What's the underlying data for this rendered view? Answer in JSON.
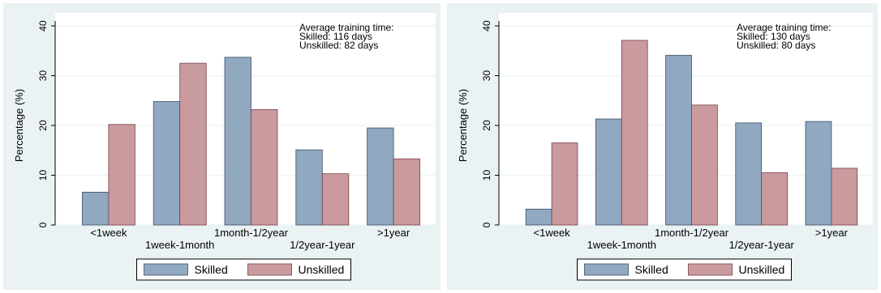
{
  "colors": {
    "outer_background": "#eaf2f3",
    "plot_background": "#ffffff",
    "skilled": "#90a8c0",
    "unskilled": "#c99a9e",
    "bar_edge": "#3d4f66",
    "unskilled_edge": "#7a3f45"
  },
  "chart_data": [
    {
      "type": "bar",
      "categories": [
        "<1week",
        "1week-1month",
        "1month-1/2year",
        "1/2year-1year",
        ">1year"
      ],
      "series": [
        {
          "name": "Skilled",
          "values": [
            6.6,
            24.8,
            33.7,
            15.1,
            19.5
          ]
        },
        {
          "name": "Unskilled",
          "values": [
            20.2,
            32.5,
            23.2,
            10.3,
            13.3
          ]
        }
      ],
      "ylabel": "Percentage (%)",
      "xlabel": "",
      "ylim": [
        0,
        40
      ],
      "yticks": [
        0,
        10,
        20,
        30,
        40
      ],
      "grid": true,
      "legend_placement": "bottom",
      "annotation": [
        "Average training time:",
        "Skilled: 116 days",
        "Unskilled: 82 days"
      ]
    },
    {
      "type": "bar",
      "categories": [
        "<1week",
        "1week-1month",
        "1month-1/2year",
        "1/2year-1year",
        ">1year"
      ],
      "series": [
        {
          "name": "Skilled",
          "values": [
            3.2,
            21.3,
            34.1,
            20.5,
            20.8
          ]
        },
        {
          "name": "Unskilled",
          "values": [
            16.5,
            37.1,
            24.1,
            10.5,
            11.4
          ]
        }
      ],
      "ylabel": "Percentage (%)",
      "xlabel": "",
      "ylim": [
        0,
        40
      ],
      "yticks": [
        0,
        10,
        20,
        30,
        40
      ],
      "grid": true,
      "legend_placement": "bottom",
      "annotation": [
        "Average training time:",
        "Skilled: 130 days",
        "Unskilled: 80 days"
      ]
    }
  ]
}
